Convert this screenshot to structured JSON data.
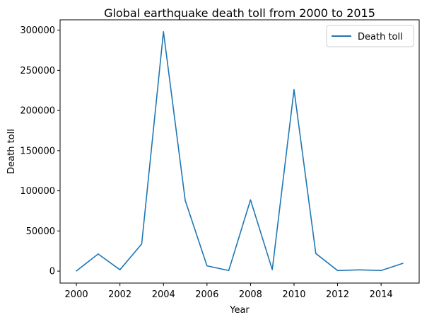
{
  "chart_data": {
    "type": "line",
    "title": "Global earthquake death toll from 2000 to 2015",
    "xlabel": "Year",
    "ylabel": "Death toll",
    "x": [
      2000,
      2001,
      2002,
      2003,
      2004,
      2005,
      2006,
      2007,
      2008,
      2009,
      2010,
      2011,
      2012,
      2013,
      2014,
      2015
    ],
    "series": [
      {
        "name": "Death toll",
        "color": "#1f77b4",
        "values": [
          231,
          21357,
          1685,
          33819,
          298101,
          87992,
          6605,
          712,
          88708,
          1790,
          226050,
          21942,
          689,
          1572,
          756,
          9624
        ]
      }
    ],
    "xlim": [
      1999.25,
      2015.75
    ],
    "ylim": [
      -14900,
      312900
    ],
    "xticks": [
      2000,
      2002,
      2004,
      2006,
      2008,
      2010,
      2012,
      2014
    ],
    "yticks": [
      0,
      50000,
      100000,
      150000,
      200000,
      250000,
      300000
    ],
    "grid": false,
    "legend_position": "top-right"
  }
}
